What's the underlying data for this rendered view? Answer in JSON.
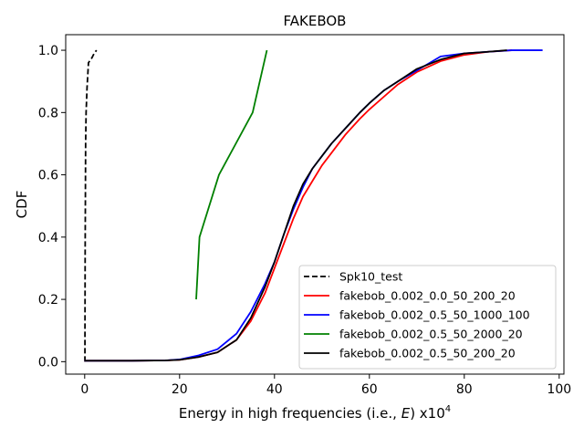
{
  "chart_data": {
    "type": "line",
    "title": "FAKEBOB",
    "xlabel_prefix": "Energy in high frequencies (i.e., ",
    "xlabel_var": "E",
    "xlabel_suffix": ") x10",
    "xlabel_sup": "4",
    "ylabel": "CDF",
    "xlim": [
      -4,
      101
    ],
    "ylim": [
      -0.04,
      1.05
    ],
    "xticks": [
      0,
      20,
      40,
      60,
      80,
      100
    ],
    "yticks": [
      0.0,
      0.2,
      0.4,
      0.6,
      0.8,
      1.0
    ],
    "xtick_labels": [
      "0",
      "20",
      "40",
      "60",
      "80",
      "100"
    ],
    "ytick_labels": [
      "0.0",
      "0.2",
      "0.4",
      "0.6",
      "0.8",
      "1.0"
    ],
    "grid": false,
    "legend_position": "lower-right",
    "series": [
      {
        "name": "Spk10_test",
        "color": "#000000",
        "dash": "dashed",
        "points": [
          [
            0.05,
            0
          ],
          [
            0.1,
            0.35
          ],
          [
            0.2,
            0.7
          ],
          [
            0.3,
            0.8
          ],
          [
            0.5,
            0.88
          ],
          [
            0.8,
            0.96
          ],
          [
            1.5,
            0.975
          ],
          [
            2.0,
            0.99
          ],
          [
            2.5,
            1.0
          ]
        ]
      },
      {
        "name": "fakebob_0.002_0.0_50_200_20",
        "color": "#ff0000",
        "dash": "solid",
        "points": [
          [
            0,
            0.003
          ],
          [
            10,
            0.003
          ],
          [
            17,
            0.004
          ],
          [
            20,
            0.006
          ],
          [
            24,
            0.015
          ],
          [
            28,
            0.03
          ],
          [
            32,
            0.07
          ],
          [
            35,
            0.13
          ],
          [
            38,
            0.22
          ],
          [
            40,
            0.3
          ],
          [
            42,
            0.38
          ],
          [
            44,
            0.46
          ],
          [
            46,
            0.53
          ],
          [
            48,
            0.58
          ],
          [
            50,
            0.63
          ],
          [
            52,
            0.67
          ],
          [
            55,
            0.73
          ],
          [
            58,
            0.78
          ],
          [
            60,
            0.81
          ],
          [
            63,
            0.85
          ],
          [
            66,
            0.89
          ],
          [
            70,
            0.93
          ],
          [
            75,
            0.965
          ],
          [
            80,
            0.985
          ],
          [
            85,
            0.995
          ],
          [
            90,
            1.0
          ]
        ]
      },
      {
        "name": "fakebob_0.002_0.5_50_1000_100",
        "color": "#0000ff",
        "dash": "solid",
        "points": [
          [
            0,
            0.003
          ],
          [
            10,
            0.003
          ],
          [
            17,
            0.004
          ],
          [
            20,
            0.007
          ],
          [
            24,
            0.02
          ],
          [
            28,
            0.04
          ],
          [
            32,
            0.09
          ],
          [
            35,
            0.16
          ],
          [
            38,
            0.25
          ],
          [
            40,
            0.32
          ],
          [
            42,
            0.41
          ],
          [
            44,
            0.49
          ],
          [
            46,
            0.56
          ],
          [
            48,
            0.62
          ],
          [
            50,
            0.66
          ],
          [
            52,
            0.7
          ],
          [
            55,
            0.75
          ],
          [
            58,
            0.8
          ],
          [
            60,
            0.83
          ],
          [
            63,
            0.87
          ],
          [
            66,
            0.9
          ],
          [
            70,
            0.935
          ],
          [
            75,
            0.98
          ],
          [
            80,
            0.99
          ],
          [
            85,
            0.995
          ],
          [
            90,
            1.0
          ],
          [
            96.5,
            1.0
          ]
        ]
      },
      {
        "name": "fakebob_0.002_0.5_50_2000_20",
        "color": "#008000",
        "dash": "solid",
        "points": [
          [
            23.5,
            0.2
          ],
          [
            24.2,
            0.4
          ],
          [
            28.3,
            0.6
          ],
          [
            35.4,
            0.8
          ],
          [
            38.4,
            1.0
          ]
        ]
      },
      {
        "name": "fakebob_0.002_0.5_50_200_20",
        "color": "#000000",
        "dash": "solid",
        "points": [
          [
            0,
            0.003
          ],
          [
            10,
            0.003
          ],
          [
            17,
            0.004
          ],
          [
            20,
            0.006
          ],
          [
            24,
            0.015
          ],
          [
            28,
            0.03
          ],
          [
            32,
            0.07
          ],
          [
            35,
            0.14
          ],
          [
            38,
            0.24
          ],
          [
            40,
            0.32
          ],
          [
            42,
            0.41
          ],
          [
            44,
            0.5
          ],
          [
            46,
            0.57
          ],
          [
            48,
            0.62
          ],
          [
            50,
            0.66
          ],
          [
            52,
            0.7
          ],
          [
            55,
            0.75
          ],
          [
            58,
            0.8
          ],
          [
            60,
            0.83
          ],
          [
            63,
            0.87
          ],
          [
            66,
            0.9
          ],
          [
            70,
            0.94
          ],
          [
            75,
            0.97
          ],
          [
            80,
            0.99
          ],
          [
            85,
            0.995
          ],
          [
            89,
            1.0
          ]
        ]
      }
    ]
  }
}
